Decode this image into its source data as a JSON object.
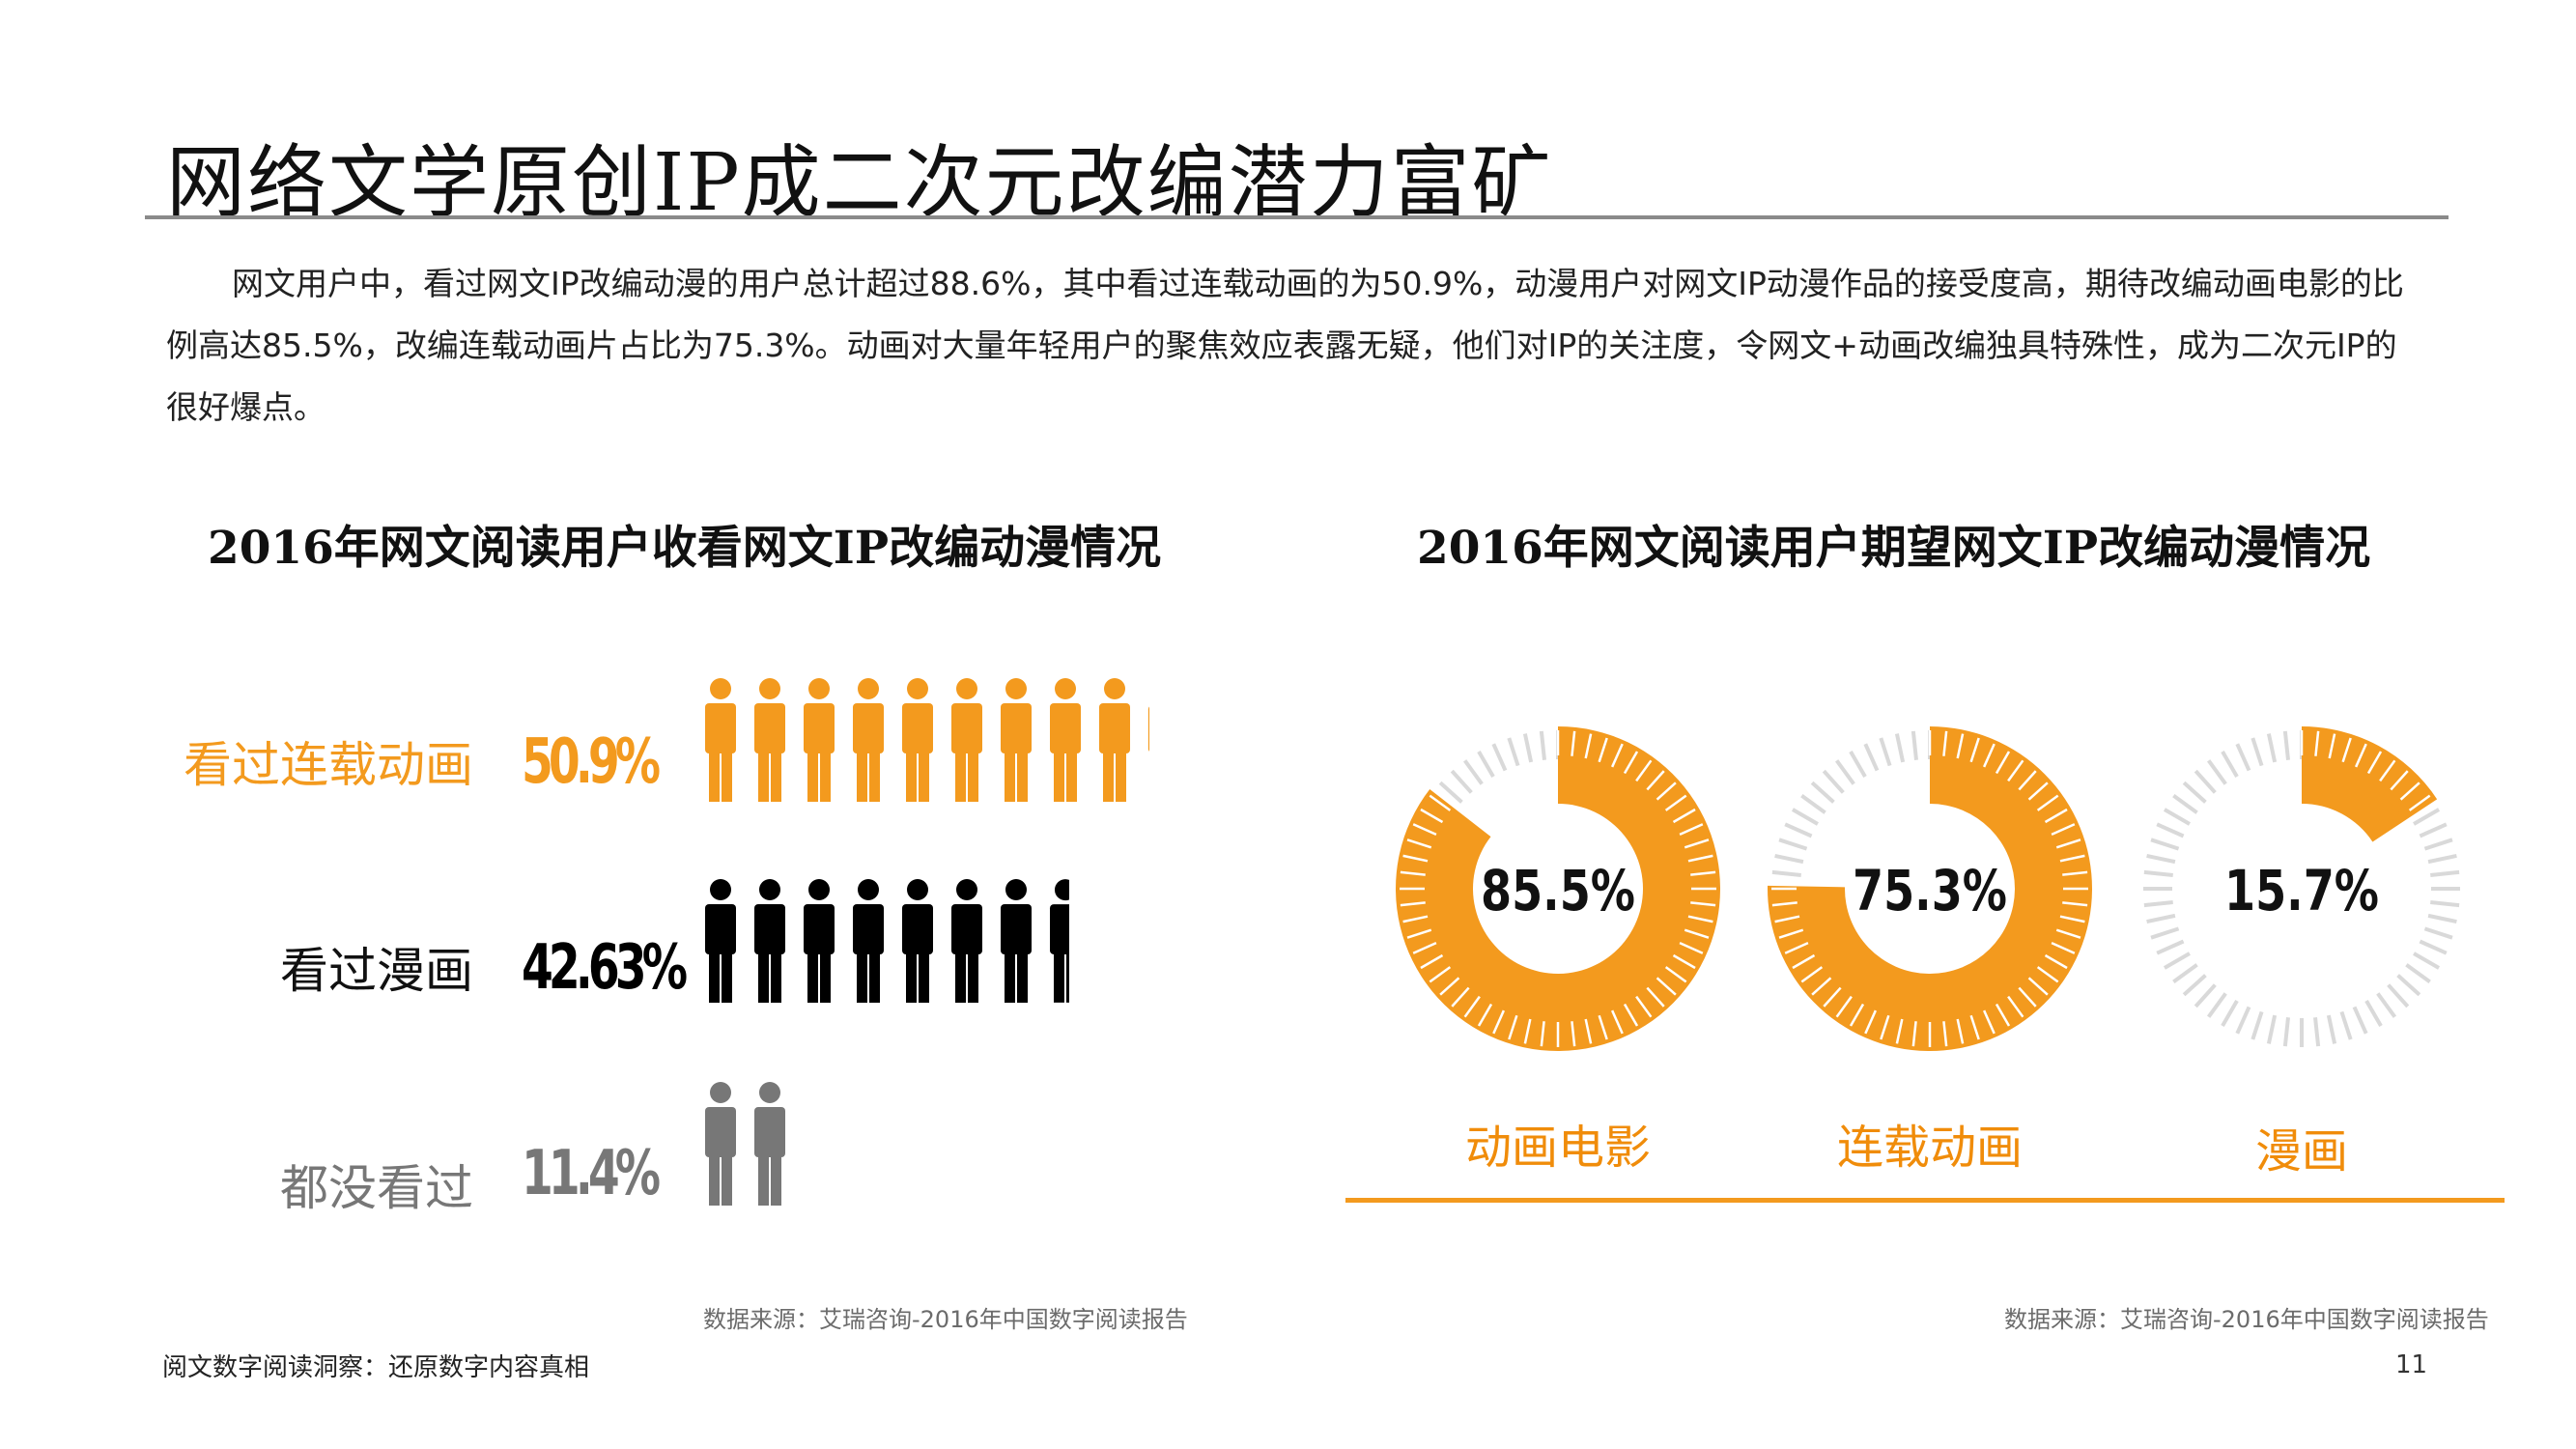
{
  "header": {
    "title": "网络文学原创IP成二次元改编潜力富矿",
    "intro": "网文用户中，看过网文IP改编动漫的用户总计超过88.6%，其中看过连载动画的为50.9%，动漫用户对网文IP动漫作品的接受度高，期待改编动画电影的比例高达85.5%，改编连载动画片占比为75.3%。动画对大量年轻用户的聚焦效应表露无疑，他们对IP的关注度，令网文+动画改编独具特殊性，成为二次元IP的很好爆点。"
  },
  "colors": {
    "orange": "#f39a1e",
    "black": "#000000",
    "gray": "#777777",
    "track": "#d9d9d9"
  },
  "chart_data": [
    {
      "type": "bar",
      "title": "2016年网文阅读用户收看网文IP改编动漫情况",
      "categories": [
        "看过连载动画",
        "看过漫画",
        "都没看过"
      ],
      "labels": [
        "50.9%",
        "42.63%",
        "11.4%"
      ],
      "values": [
        50.9,
        42.63,
        11.4
      ],
      "colors": [
        "#f39a1e",
        "#000000",
        "#777777"
      ],
      "unit": "%"
    },
    {
      "type": "pie",
      "title": "2016年网文阅读用户期望网文IP改编动漫情况",
      "categories": [
        "动画电影",
        "连载动画",
        "漫画"
      ],
      "labels": [
        "85.5%",
        "75.3%",
        "15.7%"
      ],
      "values": [
        85.5,
        75.3,
        15.7
      ],
      "unit": "%"
    }
  ],
  "sources": {
    "left": "数据来源：艾瑞咨询-2016年中国数字阅读报告",
    "right": "数据来源：艾瑞咨询-2016年中国数字阅读报告"
  },
  "footer": {
    "left": "阅文数字阅读洞察：还原数字内容真相",
    "page": "11"
  }
}
